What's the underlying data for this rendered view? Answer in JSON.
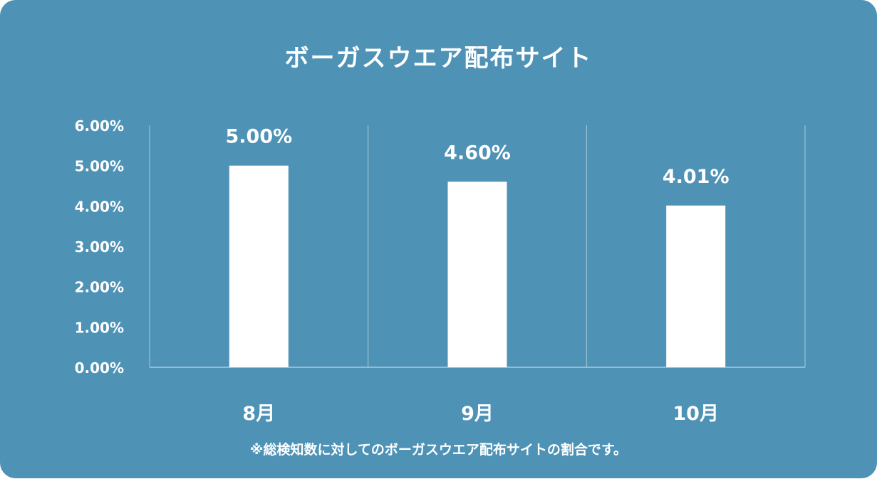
{
  "chart_data": {
    "type": "bar",
    "title": "ボーガスウエア配布サイト",
    "categories": [
      "8月",
      "9月",
      "10月"
    ],
    "values": [
      5.0,
      4.6,
      4.01
    ],
    "data_labels": [
      "5.00%",
      "4.60%",
      "4.01%"
    ],
    "yticks": [
      "0.00%",
      "1.00%",
      "2.00%",
      "3.00%",
      "4.00%",
      "5.00%",
      "6.00%"
    ],
    "ylim": [
      0,
      6
    ],
    "xlabel": "",
    "ylabel": "",
    "grid": "vertical-separators",
    "legend": "none"
  },
  "footnote": "※総検知数に対してのボーガスウエア配布サイトの割合です。",
  "colors": {
    "background": "#4e92b6",
    "bar": "#ffffff",
    "text": "#ffffff",
    "gridline": "#a9cbdd"
  }
}
